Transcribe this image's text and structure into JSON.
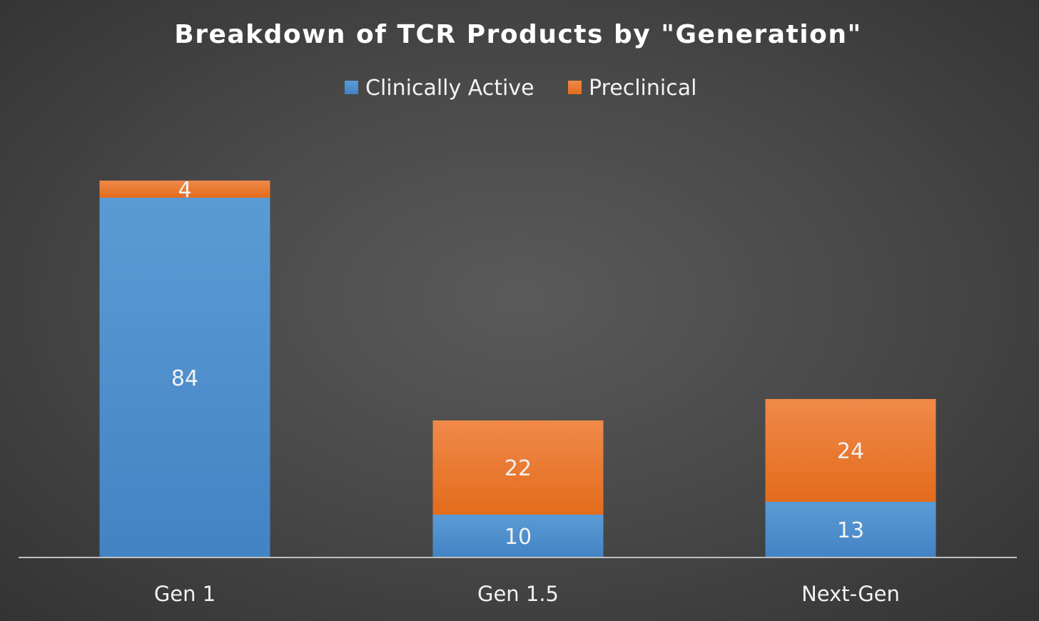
{
  "chart_data": {
    "type": "bar",
    "stacked": true,
    "title": "Breakdown of TCR Products by \"Generation\"",
    "xlabel": "",
    "ylabel": "",
    "ylim": [
      0,
      100
    ],
    "grid": false,
    "legend_position": "top-center",
    "categories": [
      "Gen 1",
      "Gen 1.5",
      "Next-Gen"
    ],
    "series": [
      {
        "name": "Clinically Active",
        "values": [
          84,
          10,
          13
        ],
        "labels": [
          "84",
          "10",
          "13"
        ],
        "color": "#5b9bd5",
        "color_dark": "#4383c4"
      },
      {
        "name": "Preclinical",
        "values": [
          4,
          22,
          24
        ],
        "labels": [
          "4",
          "22",
          "24"
        ],
        "color": "#f0894a",
        "color_dark": "#e36c1c"
      }
    ],
    "colors": {
      "axis_line": "#bfbfbf"
    }
  }
}
